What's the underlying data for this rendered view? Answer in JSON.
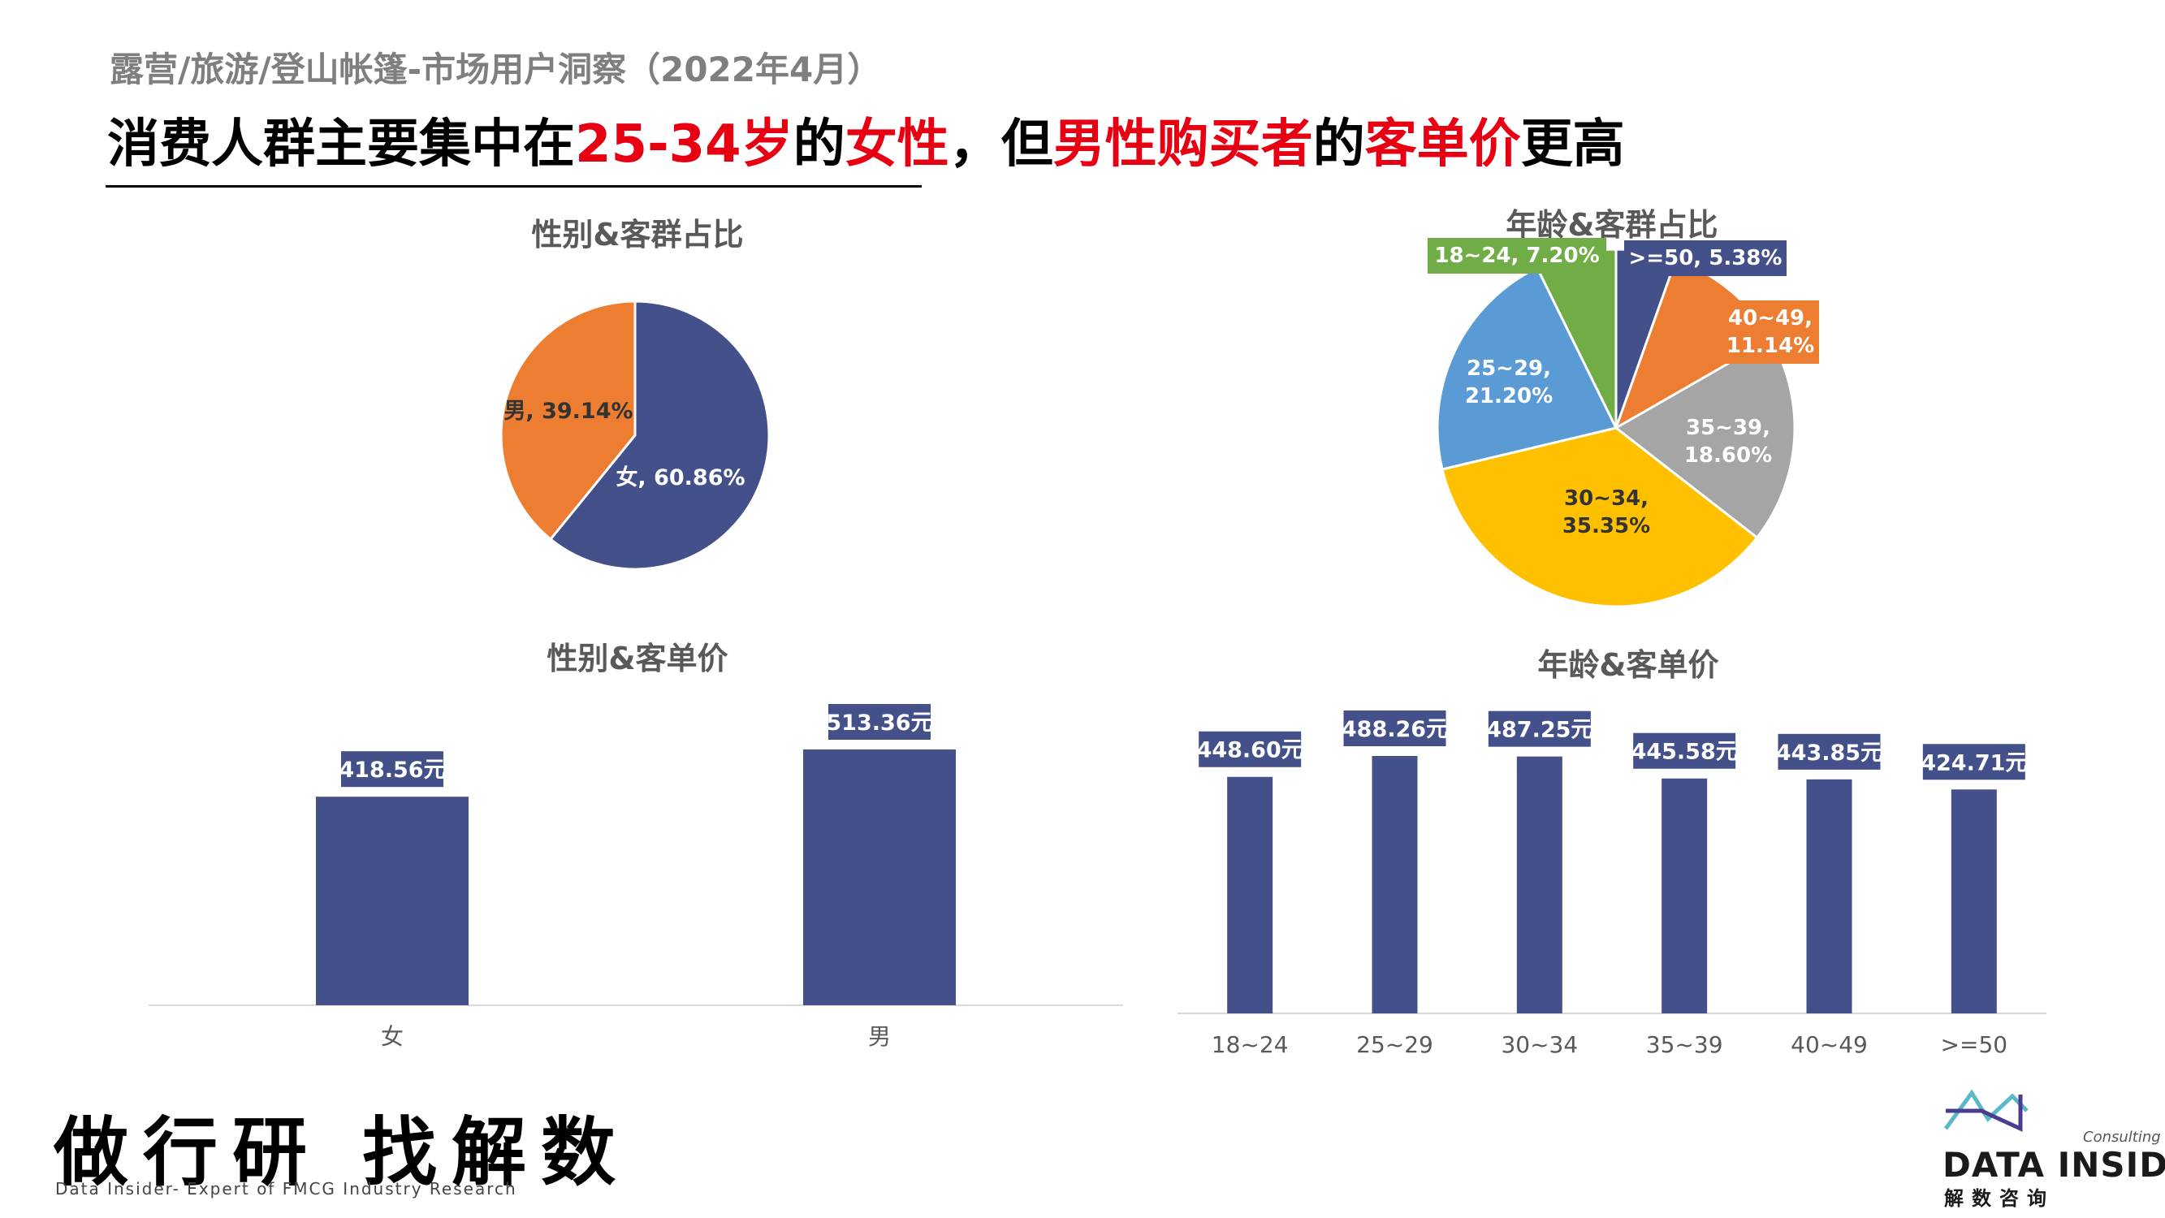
{
  "header": {
    "subtitle": "露营/旅游/登山帐篷-市场用户洞察（2022年4月）",
    "headline_parts": [
      {
        "text": "消费人群主要集中在",
        "highlight": false
      },
      {
        "text": "25-34岁",
        "highlight": true
      },
      {
        "text": "的",
        "highlight": false
      },
      {
        "text": "女性",
        "highlight": true
      },
      {
        "text": "，但",
        "highlight": false
      },
      {
        "text": "男性购买者",
        "highlight": true
      },
      {
        "text": "的",
        "highlight": false
      },
      {
        "text": "客单价",
        "highlight": true
      },
      {
        "text": "更高",
        "highlight": false
      }
    ],
    "highlight_color": "#e60012"
  },
  "footer": {
    "slogan": "做行研 找解数",
    "slogan_sub": "Data Insider- Expert of FMCG Industry Research",
    "logo_consulting": "Consulting",
    "logo_name": "DATA INSIDER",
    "logo_cn": "解数咨询"
  },
  "colors": {
    "navy": "#44508a",
    "orange": "#ed7d31",
    "gray": "#a5a5a5",
    "yellow": "#ffc000",
    "blue": "#5b9bd5",
    "green": "#70ad47"
  },
  "chart_data": [
    {
      "type": "pie",
      "title": "性别&客群占比",
      "slices": [
        {
          "label": "女",
          "value": 60.86,
          "display": "女, 60.86%",
          "color": "#44508a"
        },
        {
          "label": "男",
          "value": 39.14,
          "display": "男, 39.14%",
          "color": "#ed7d31"
        }
      ]
    },
    {
      "type": "pie",
      "title": "年龄&客群占比",
      "slices": [
        {
          "label": ">=50",
          "value": 5.38,
          "display": ">=50, 5.38%",
          "color": "#44508a"
        },
        {
          "label": "40~49",
          "value": 11.14,
          "display": "40~49, 11.14%",
          "color": "#ed7d31"
        },
        {
          "label": "35~39",
          "value": 18.6,
          "display": "35~39, 18.60%",
          "color": "#a5a5a5"
        },
        {
          "label": "30~34",
          "value": 35.35,
          "display": "30~34, 35.35%",
          "color": "#ffc000"
        },
        {
          "label": "25~29",
          "value": 21.2,
          "display": "25~29, 21.20%",
          "color": "#5b9bd5"
        },
        {
          "label": "18~24",
          "value": 7.2,
          "display": "18~24, 7.20%",
          "color": "#70ad47"
        }
      ]
    },
    {
      "type": "bar",
      "title": "性别&客单价",
      "categories": [
        "女",
        "男"
      ],
      "values": [
        418.56,
        513.36
      ],
      "data_labels": [
        "418.56元",
        "513.36元"
      ],
      "color": "#44508a"
    },
    {
      "type": "bar",
      "title": "年龄&客单价",
      "categories": [
        "18~24",
        "25~29",
        "30~34",
        "35~39",
        "40~49",
        ">=50"
      ],
      "values": [
        448.6,
        488.26,
        487.25,
        445.58,
        443.85,
        424.71
      ],
      "data_labels": [
        "448.60元",
        "488.26元",
        "487.25元",
        "445.58元",
        "443.85元",
        "424.71元"
      ],
      "color": "#44508a"
    }
  ]
}
